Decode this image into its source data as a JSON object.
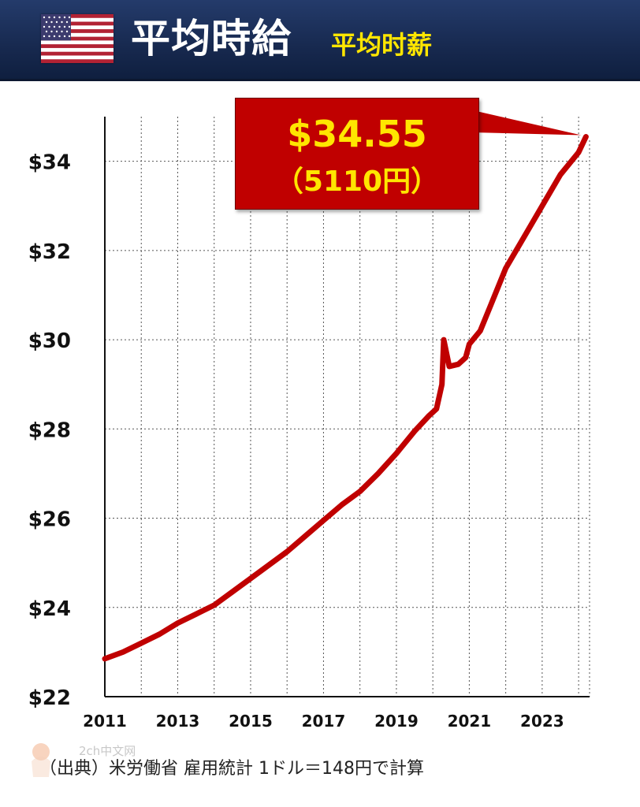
{
  "header": {
    "title": "平均時給",
    "subtitle": "平均时薪",
    "flag_icon": "us-flag-icon"
  },
  "callout": {
    "value": "$34.55",
    "yen": "（5110円）"
  },
  "source_note": "（出典）米労働省 雇用統計 1ドル＝148円で計算",
  "watermark_text": "2ch中文网",
  "colors": {
    "header_bg": "#1b2f5c",
    "title": "#ffffff",
    "subtitle": "#ffe600",
    "line": "#c00000",
    "callout_bg": "#c00000",
    "callout_text": "#ffe600"
  },
  "chart_data": {
    "type": "line",
    "x_ticks": [
      "2011",
      "2013",
      "2015",
      "2017",
      "2019",
      "2021",
      "2023"
    ],
    "y_ticks": [
      "$22",
      "$24",
      "$26",
      "$28",
      "$30",
      "$32",
      "$34"
    ],
    "xlim": [
      2011,
      2024.3
    ],
    "ylim": [
      22,
      35
    ],
    "grid": true,
    "series": [
      {
        "color": "#c00000",
        "points": [
          [
            2011.0,
            22.85
          ],
          [
            2011.5,
            23.0
          ],
          [
            2012.0,
            23.2
          ],
          [
            2012.5,
            23.4
          ],
          [
            2013.0,
            23.65
          ],
          [
            2013.5,
            23.85
          ],
          [
            2014.0,
            24.05
          ],
          [
            2014.5,
            24.35
          ],
          [
            2015.0,
            24.65
          ],
          [
            2015.5,
            24.95
          ],
          [
            2016.0,
            25.25
          ],
          [
            2016.5,
            25.6
          ],
          [
            2017.0,
            25.95
          ],
          [
            2017.5,
            26.3
          ],
          [
            2018.0,
            26.6
          ],
          [
            2018.5,
            27.0
          ],
          [
            2019.0,
            27.45
          ],
          [
            2019.5,
            27.95
          ],
          [
            2019.9,
            28.3
          ],
          [
            2020.1,
            28.45
          ],
          [
            2020.25,
            29.0
          ],
          [
            2020.3,
            30.0
          ],
          [
            2020.45,
            29.4
          ],
          [
            2020.7,
            29.45
          ],
          [
            2020.9,
            29.6
          ],
          [
            2021.0,
            29.9
          ],
          [
            2021.3,
            30.2
          ],
          [
            2021.6,
            30.8
          ],
          [
            2022.0,
            31.6
          ],
          [
            2022.5,
            32.3
          ],
          [
            2023.0,
            33.0
          ],
          [
            2023.5,
            33.7
          ],
          [
            2024.0,
            34.2
          ],
          [
            2024.2,
            34.55
          ]
        ]
      }
    ]
  }
}
